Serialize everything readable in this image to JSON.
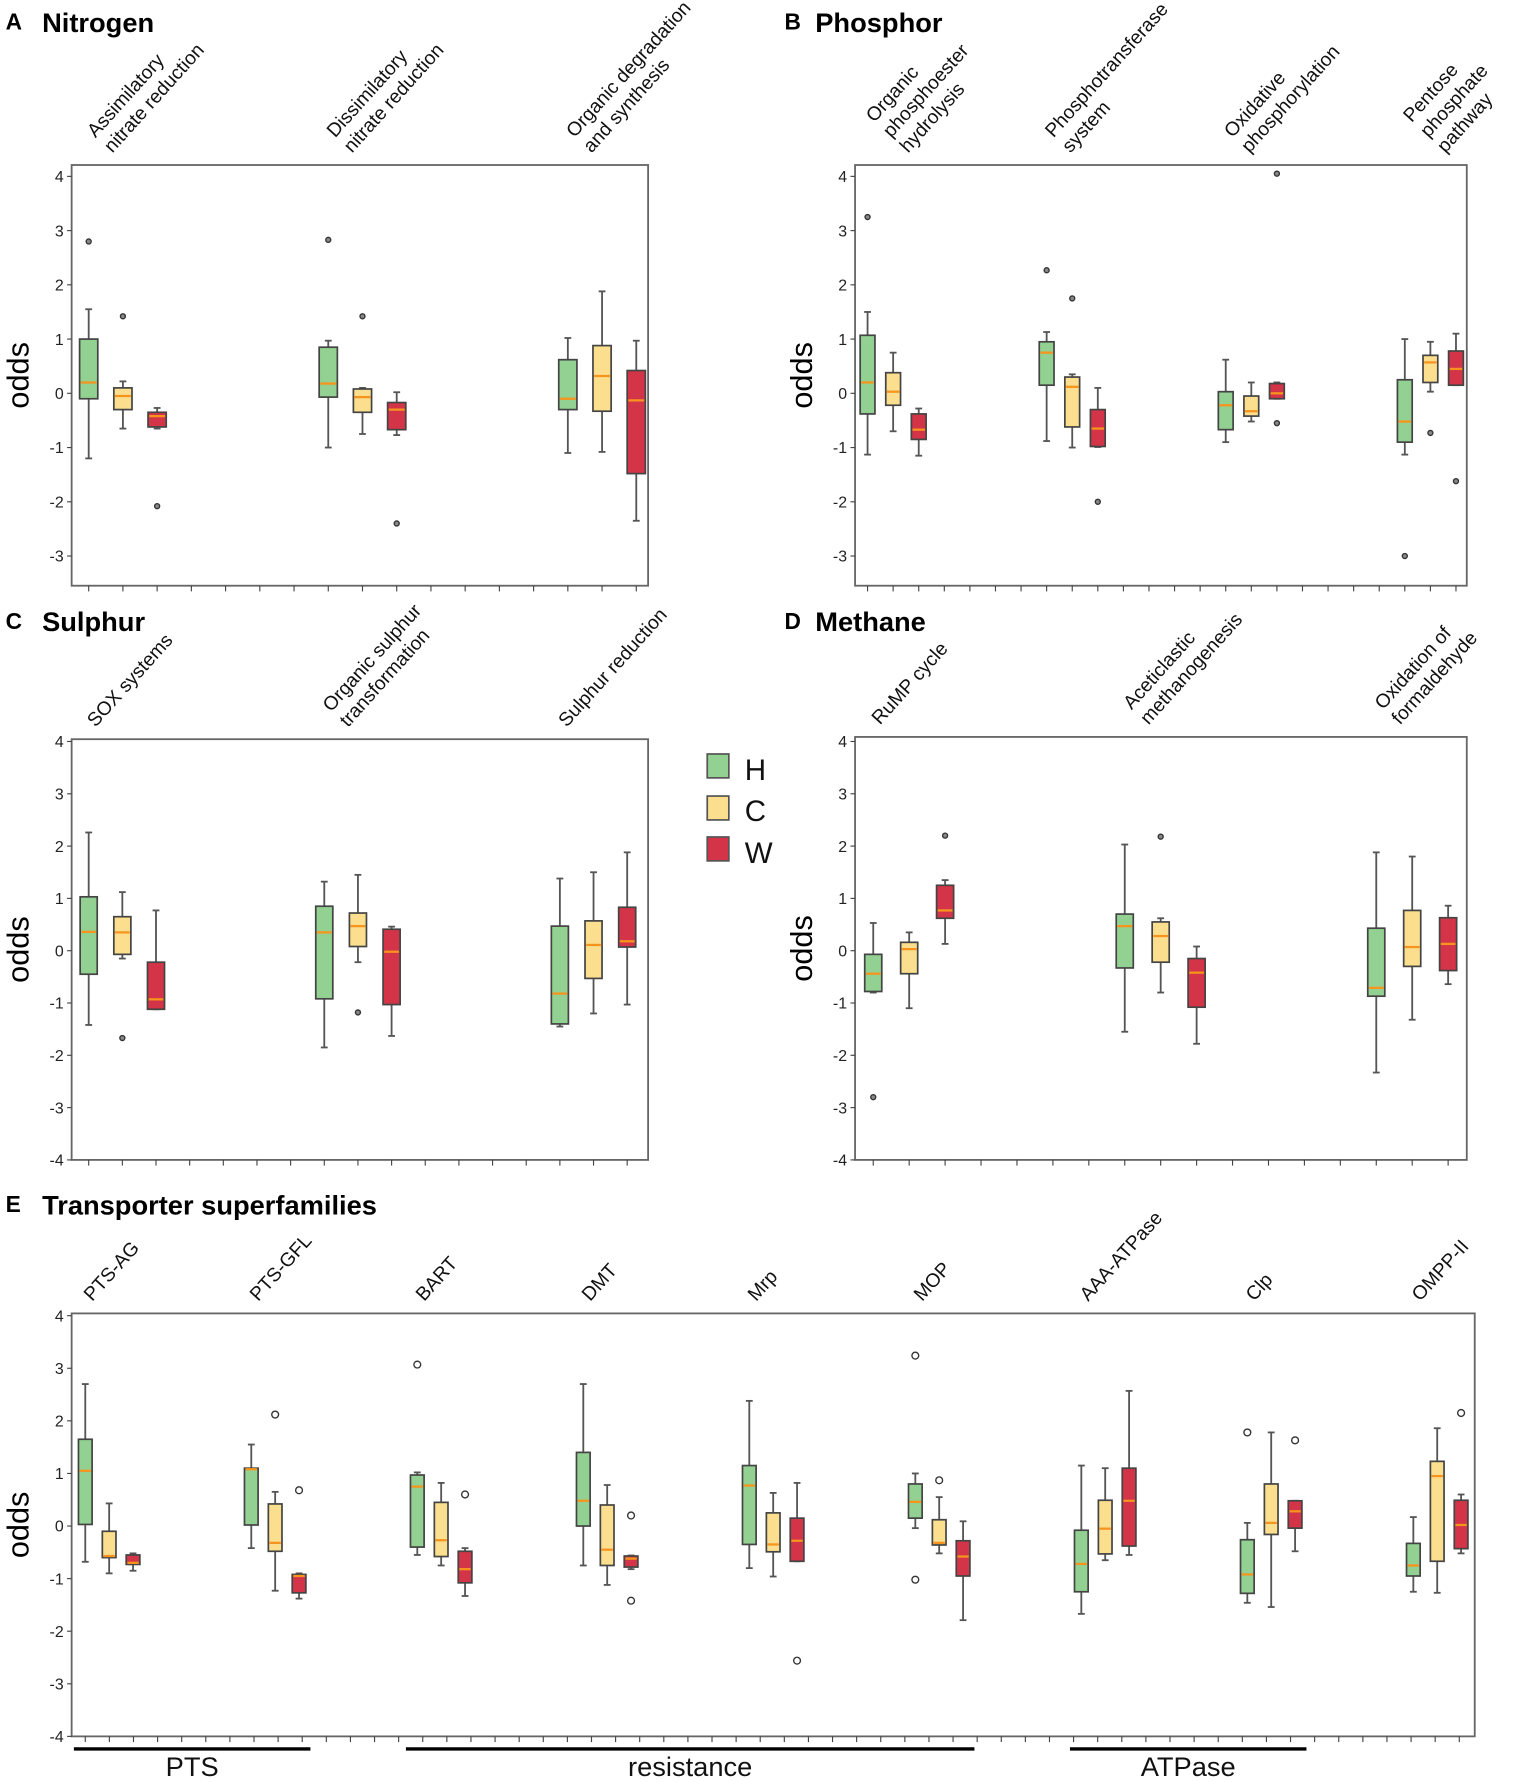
{
  "legend": [
    {
      "name": "H",
      "color": "#92d191"
    },
    {
      "name": "C",
      "color": "#fbdf8e"
    },
    {
      "name": "W",
      "color": "#d43447"
    }
  ],
  "median_color": "#f7941d",
  "chart_data": [
    {
      "letter": "A",
      "title": "Nitrogen",
      "type": "box",
      "ylabel": "odds",
      "ylim": [
        -3.6,
        4.15
      ],
      "yticks": [
        "4",
        "3",
        "2",
        "1",
        "0",
        "-1",
        "-2",
        "-3"
      ],
      "series": [
        "H",
        "C",
        "W"
      ],
      "groups": [
        {
          "label": [
            "Assimilatory",
            "nitrate reduction"
          ],
          "boxes": [
            [
              -1.2,
              -0.1,
              0.2,
              1.0,
              1.55
            ],
            [
              -0.65,
              -0.3,
              -0.05,
              0.1,
              0.22
            ],
            [
              -0.65,
              -0.62,
              -0.42,
              -0.35,
              -0.27
            ]
          ],
          "outliers": [
            [
              2.8
            ],
            [
              1.42
            ],
            [
              -2.08
            ]
          ]
        },
        {
          "label": [
            "Dissimilatory",
            "nitrate reduction"
          ],
          "boxes": [
            [
              -1.0,
              -0.07,
              0.18,
              0.85,
              0.97
            ],
            [
              -0.75,
              -0.35,
              -0.07,
              0.08,
              0.1
            ],
            [
              -0.77,
              -0.67,
              -0.3,
              -0.17,
              0.02
            ]
          ],
          "outliers": [
            [
              2.83
            ],
            [
              1.42
            ],
            [
              -2.4
            ]
          ]
        },
        {
          "label": [
            "Organic degradation",
            "and synthesis"
          ],
          "boxes": [
            [
              -1.1,
              -0.3,
              -0.1,
              0.62,
              1.02
            ],
            [
              -1.08,
              -0.33,
              0.32,
              0.88,
              1.88
            ],
            [
              -2.35,
              -1.48,
              -0.13,
              0.42,
              0.97
            ]
          ],
          "outliers": [
            [],
            [],
            []
          ]
        }
      ]
    },
    {
      "letter": "B",
      "title": "Phosphor",
      "type": "box",
      "ylabel": "odds",
      "ylim": [
        -3.6,
        4.15
      ],
      "yticks": [
        "4",
        "3",
        "2",
        "1",
        "0",
        "-1",
        "-2",
        "-3"
      ],
      "series": [
        "H",
        "C",
        "W"
      ],
      "groups": [
        {
          "label": [
            "Organic",
            "phosphoester",
            "hydrolysis"
          ],
          "boxes": [
            [
              -1.13,
              -0.38,
              0.2,
              1.07,
              1.5
            ],
            [
              -0.7,
              -0.22,
              0.03,
              0.38,
              0.75
            ],
            [
              -1.15,
              -0.85,
              -0.67,
              -0.38,
              -0.28
            ]
          ],
          "outliers": [
            [
              3.25
            ],
            [],
            []
          ]
        },
        {
          "label": [
            "Phosphotransferase",
            "system"
          ],
          "boxes": [
            [
              -0.88,
              0.15,
              0.75,
              0.95,
              1.13
            ],
            [
              -1.0,
              -0.62,
              0.12,
              0.3,
              0.35
            ],
            [
              -0.99,
              -0.98,
              -0.65,
              -0.3,
              0.1
            ]
          ],
          "outliers": [
            [
              2.27
            ],
            [
              1.75
            ],
            [
              -2.0
            ]
          ]
        },
        {
          "label": [
            "Oxidative",
            "phosphorylation"
          ],
          "boxes": [
            [
              -0.9,
              -0.67,
              -0.22,
              0.03,
              0.62
            ],
            [
              -0.52,
              -0.42,
              -0.33,
              -0.05,
              0.2
            ],
            [
              -0.1,
              -0.1,
              0.0,
              0.18,
              0.2
            ]
          ],
          "outliers": [
            [],
            [],
            [
              -0.55,
              4.05
            ]
          ]
        },
        {
          "label": [
            "Pentose",
            "phosphate",
            "pathway"
          ],
          "boxes": [
            [
              -1.13,
              -0.9,
              -0.52,
              0.25,
              1.0
            ],
            [
              0.03,
              0.2,
              0.57,
              0.7,
              0.95
            ],
            [
              0.15,
              0.15,
              0.45,
              0.78,
              1.1
            ]
          ],
          "outliers": [
            [
              -3.0
            ],
            [
              -0.73
            ],
            [
              -1.62
            ]
          ]
        }
      ]
    },
    {
      "letter": "C",
      "title": "Sulphur",
      "type": "box",
      "ylabel": "odds",
      "ylim": [
        -4,
        4.05
      ],
      "yticks": [
        "4",
        "3",
        "2",
        "1",
        "0",
        "-1",
        "-2",
        "-3",
        "-4"
      ],
      "series": [
        "H",
        "C",
        "W"
      ],
      "groups": [
        {
          "label": [
            "SOX systems"
          ],
          "boxes": [
            [
              -1.42,
              -0.45,
              0.36,
              1.03,
              2.26
            ],
            [
              -0.15,
              -0.07,
              0.35,
              0.65,
              1.12
            ],
            [
              -1.12,
              -1.12,
              -0.93,
              -0.22,
              0.77
            ]
          ],
          "outliers": [
            [],
            [
              -1.67
            ],
            []
          ]
        },
        {
          "label": [
            "Organic sulphur",
            "transformation"
          ],
          "boxes": [
            [
              -1.85,
              -0.92,
              0.35,
              0.85,
              1.32
            ],
            [
              -0.22,
              0.08,
              0.47,
              0.72,
              1.45
            ],
            [
              -1.63,
              -1.03,
              -0.02,
              0.41,
              0.46
            ]
          ],
          "outliers": [
            [],
            [
              -1.18
            ],
            []
          ]
        },
        {
          "label": [
            "Sulphur reduction"
          ],
          "boxes": [
            [
              -1.45,
              -1.4,
              -0.82,
              0.47,
              1.38
            ],
            [
              -1.2,
              -0.53,
              0.11,
              0.57,
              1.5
            ],
            [
              -1.03,
              0.07,
              0.18,
              0.83,
              1.88
            ]
          ],
          "outliers": [
            [],
            [],
            []
          ]
        }
      ]
    },
    {
      "letter": "D",
      "title": "Methane",
      "type": "box",
      "ylabel": "odds",
      "ylim": [
        -4,
        4.05
      ],
      "yticks": [
        "4",
        "3",
        "2",
        "1",
        "0",
        "-1",
        "-2",
        "-3",
        "-4"
      ],
      "series": [
        "H",
        "C",
        "W"
      ],
      "groups": [
        {
          "label": [
            "RuMP cycle"
          ],
          "boxes": [
            [
              -0.8,
              -0.78,
              -0.44,
              -0.07,
              0.53
            ],
            [
              -1.1,
              -0.44,
              0.03,
              0.16,
              0.35
            ],
            [
              0.13,
              0.62,
              0.77,
              1.25,
              1.35
            ]
          ],
          "outliers": [
            [
              -2.8
            ],
            [],
            [
              2.2
            ]
          ]
        },
        {
          "label": [
            "Aceticlastic",
            "methanogenesis"
          ],
          "boxes": [
            [
              -1.55,
              -0.33,
              0.47,
              0.7,
              2.03
            ],
            [
              -0.8,
              -0.22,
              0.28,
              0.55,
              0.62
            ],
            [
              -1.78,
              -1.08,
              -0.42,
              -0.15,
              0.08
            ]
          ],
          "outliers": [
            [],
            [
              2.18
            ],
            []
          ]
        },
        {
          "label": [
            "Oxidation of",
            "formaldehyde"
          ],
          "boxes": [
            [
              -2.33,
              -0.87,
              -0.71,
              0.43,
              1.88
            ],
            [
              -1.32,
              -0.3,
              0.07,
              0.77,
              1.8
            ],
            [
              -0.64,
              -0.38,
              0.13,
              0.63,
              0.86
            ]
          ],
          "outliers": [
            [],
            [],
            []
          ]
        }
      ]
    },
    {
      "letter": "E",
      "title": "Transporter superfamilies",
      "type": "box",
      "ylabel": "odds",
      "ylim": [
        -4,
        4
      ],
      "yticks": [
        "4",
        "3",
        "2",
        "1",
        "0",
        "-1",
        "-2",
        "-3",
        "-4"
      ],
      "series": [
        "H",
        "C",
        "W"
      ],
      "groups": [
        {
          "label": [
            "PTS-AG"
          ],
          "boxes": [
            [
              -0.68,
              0.03,
              1.05,
              1.65,
              2.7
            ],
            [
              -0.9,
              -0.6,
              -0.57,
              -0.1,
              0.43
            ],
            [
              -0.85,
              -0.73,
              -0.7,
              -0.55,
              -0.52
            ]
          ],
          "outliers": [
            [],
            [],
            []
          ]
        },
        {
          "label": [
            "PTS-GFL"
          ],
          "boxes": [
            [
              -0.42,
              0.02,
              1.08,
              1.1,
              1.55
            ],
            [
              -1.23,
              -0.48,
              -0.32,
              0.42,
              0.65
            ],
            [
              -1.38,
              -1.27,
              -0.95,
              -0.92,
              -0.9
            ]
          ],
          "outliers": [
            [],
            [
              2.12
            ],
            [
              0.68
            ]
          ]
        },
        {
          "label": [
            "BART"
          ],
          "boxes": [
            [
              -0.55,
              -0.4,
              0.75,
              0.97,
              1.02
            ],
            [
              -0.75,
              -0.58,
              -0.27,
              0.45,
              0.82
            ],
            [
              -1.33,
              -1.08,
              -0.82,
              -0.48,
              -0.42
            ]
          ],
          "outliers": [
            [
              3.07
            ],
            [],
            [
              0.6
            ]
          ]
        },
        {
          "label": [
            "DMT"
          ],
          "boxes": [
            [
              -0.75,
              0.0,
              0.48,
              1.4,
              2.7
            ],
            [
              -1.12,
              -0.75,
              -0.45,
              0.4,
              0.78
            ],
            [
              -0.82,
              -0.78,
              -0.62,
              -0.57,
              -0.56
            ]
          ],
          "outliers": [
            [],
            [],
            [
              0.2,
              -1.42
            ]
          ]
        },
        {
          "label": [
            "Mrp"
          ],
          "boxes": [
            [
              -0.8,
              -0.35,
              0.77,
              1.15,
              2.38
            ],
            [
              -0.96,
              -0.49,
              -0.35,
              0.25,
              0.63
            ],
            [
              -0.67,
              -0.67,
              -0.28,
              0.15,
              0.82
            ]
          ],
          "outliers": [
            [],
            [],
            [
              -2.56
            ]
          ]
        },
        {
          "label": [
            "MOP"
          ],
          "boxes": [
            [
              -0.04,
              0.15,
              0.46,
              0.8,
              1.0
            ],
            [
              -0.52,
              -0.36,
              -0.32,
              0.12,
              0.55
            ],
            [
              -1.79,
              -0.95,
              -0.58,
              -0.28,
              0.09
            ]
          ],
          "outliers": [
            [
              3.24,
              -1.02
            ],
            [
              0.87
            ],
            []
          ]
        },
        {
          "label": [
            "AAA-ATPase"
          ],
          "boxes": [
            [
              -1.67,
              -1.25,
              -0.72,
              -0.08,
              1.15
            ],
            [
              -0.65,
              -0.53,
              -0.05,
              0.49,
              1.1
            ],
            [
              -0.55,
              -0.38,
              0.48,
              1.1,
              2.57
            ]
          ],
          "outliers": [
            [],
            [],
            []
          ]
        },
        {
          "label": [
            "Clp"
          ],
          "boxes": [
            [
              -1.46,
              -1.28,
              -0.92,
              -0.26,
              0.06
            ],
            [
              -1.54,
              -0.16,
              0.06,
              0.8,
              1.78
            ],
            [
              -0.48,
              -0.04,
              0.28,
              0.48,
              0.48
            ]
          ],
          "outliers": [
            [
              1.78
            ],
            [],
            [
              1.63
            ]
          ]
        },
        {
          "label": [
            "OMPP-II"
          ],
          "boxes": [
            [
              -1.25,
              -0.95,
              -0.75,
              -0.33,
              0.17
            ],
            [
              -1.27,
              -0.67,
              0.95,
              1.23,
              1.86
            ],
            [
              -0.52,
              -0.43,
              0.02,
              0.49,
              0.6
            ]
          ],
          "outliers": [
            [],
            [],
            [
              2.15
            ]
          ]
        }
      ],
      "brackets": [
        {
          "label": "PTS",
          "groups": [
            0,
            1
          ]
        },
        {
          "label": "resistance",
          "groups": [
            2,
            5
          ]
        },
        {
          "label": "ATPase",
          "groups": [
            6,
            7
          ]
        }
      ]
    }
  ]
}
